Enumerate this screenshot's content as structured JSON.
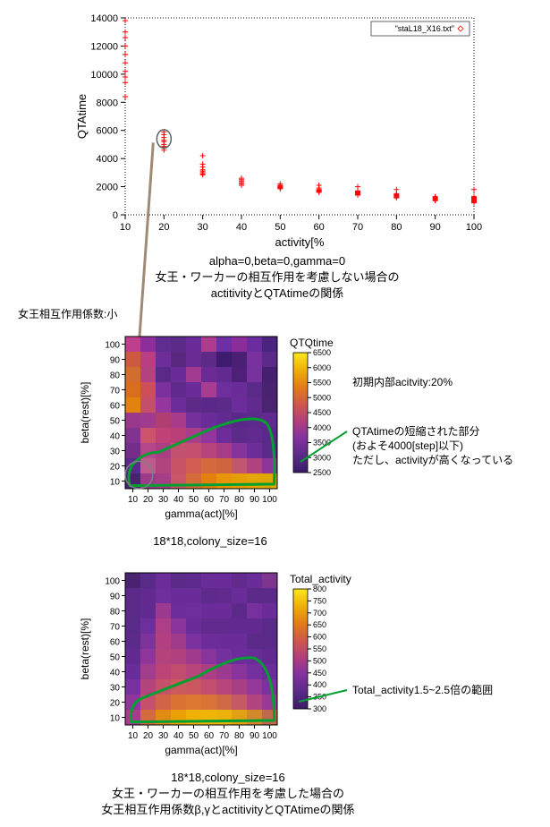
{
  "scatter": {
    "type": "scatter",
    "title_box": "\"staL18_X16.txt\"",
    "xlabel": "activity[%",
    "ylabel": "QTAtime",
    "xlim": [
      10,
      100
    ],
    "ylim": [
      0,
      14000
    ],
    "xticks": [
      10,
      20,
      30,
      40,
      50,
      60,
      70,
      80,
      90,
      100
    ],
    "yticks": [
      0,
      2000,
      4000,
      6000,
      8000,
      10000,
      12000,
      14000
    ],
    "marker_color": "#ff0000",
    "marker_size": 3,
    "bg_color": "#ffffff",
    "axis_color": "#000000",
    "tick_font_size": 11,
    "points": [
      [
        10,
        13800
      ],
      [
        10,
        13000
      ],
      [
        10,
        12600
      ],
      [
        10,
        12000
      ],
      [
        10,
        11400
      ],
      [
        10,
        10800
      ],
      [
        10,
        10200
      ],
      [
        10,
        9800
      ],
      [
        10,
        9400
      ],
      [
        10,
        8400
      ],
      [
        20,
        5900
      ],
      [
        20,
        5700
      ],
      [
        20,
        5500
      ],
      [
        20,
        5300
      ],
      [
        20,
        5200
      ],
      [
        20,
        5000
      ],
      [
        20,
        4800
      ],
      [
        20,
        4600
      ],
      [
        20,
        4850
      ],
      [
        30,
        3600
      ],
      [
        30,
        3400
      ],
      [
        30,
        3200
      ],
      [
        30,
        3100
      ],
      [
        30,
        3000
      ],
      [
        30,
        2900
      ],
      [
        30,
        2850
      ],
      [
        30,
        4200
      ],
      [
        40,
        2600
      ],
      [
        40,
        2500
      ],
      [
        40,
        2400
      ],
      [
        40,
        2300
      ],
      [
        40,
        2200
      ],
      [
        40,
        2100
      ],
      [
        50,
        2200
      ],
      [
        50,
        2100
      ],
      [
        50,
        2050
      ],
      [
        50,
        2000
      ],
      [
        50,
        1950
      ],
      [
        50,
        1900
      ],
      [
        50,
        1850
      ],
      [
        60,
        1900
      ],
      [
        60,
        1800
      ],
      [
        60,
        1750
      ],
      [
        60,
        1700
      ],
      [
        60,
        1650
      ],
      [
        60,
        1600
      ],
      [
        60,
        2100
      ],
      [
        70,
        1700
      ],
      [
        70,
        1650
      ],
      [
        70,
        1600
      ],
      [
        70,
        1550
      ],
      [
        70,
        1500
      ],
      [
        70,
        1450
      ],
      [
        70,
        1400
      ],
      [
        70,
        2000
      ],
      [
        80,
        1500
      ],
      [
        80,
        1450
      ],
      [
        80,
        1400
      ],
      [
        80,
        1350
      ],
      [
        80,
        1300
      ],
      [
        80,
        1250
      ],
      [
        80,
        1200
      ],
      [
        80,
        1800
      ],
      [
        90,
        1300
      ],
      [
        90,
        1250
      ],
      [
        90,
        1200
      ],
      [
        90,
        1150
      ],
      [
        90,
        1100
      ],
      [
        90,
        1050
      ],
      [
        90,
        1000
      ],
      [
        100,
        1300
      ],
      [
        100,
        1250
      ],
      [
        100,
        1200
      ],
      [
        100,
        1150
      ],
      [
        100,
        1100
      ],
      [
        100,
        1050
      ],
      [
        100,
        1000
      ],
      [
        100,
        950
      ],
      [
        100,
        900
      ],
      [
        100,
        850
      ],
      [
        100,
        1800
      ]
    ],
    "circle_box": {
      "x": 20,
      "y": 5400,
      "rx": 5,
      "ry": 650,
      "stroke": "#606060",
      "stroke_width": 1.5
    },
    "sub_caption_1": "alpha=0,beta=0,gamma=0",
    "caption_2": "女王・ワーカーの相互作用を考慮しない場合の",
    "caption_3": "actitivityとQTAtimeの関係"
  },
  "connector": {
    "stroke": "#a08a76",
    "stroke_width": 3
  },
  "left_label": "女王相互作用係数:小",
  "heatmap1": {
    "type": "heatmap",
    "xlabel": "gamma(act)[%]",
    "ylabel": "beta(rest)[%]",
    "colorbar_title": "QTQtime",
    "xlims": [
      10,
      100
    ],
    "ylims": [
      10,
      100
    ],
    "xticks": [
      10,
      20,
      30,
      40,
      50,
      60,
      70,
      80,
      90,
      100
    ],
    "yticks": [
      10,
      20,
      30,
      40,
      50,
      60,
      70,
      80,
      90,
      100
    ],
    "colorbar_ticks": [
      2500,
      3000,
      3500,
      4000,
      4500,
      5000,
      5500,
      6000,
      6500
    ],
    "caption": "18*18,colony_size=16",
    "right_labels": {
      "a": "初期内部acitvity:20%",
      "b": "QTAtimeの短縮された部分",
      "c": "(およそ4000[step]以下)",
      "d": "ただし、activityが高くなっている"
    },
    "region_stroke": "#00a030",
    "region_width": 3,
    "grid": {
      "rows": 10,
      "cols": 10,
      "colors": [
        [
          "#bf3f8f",
          "#8e2e9c",
          "#5f2c90",
          "#5a2a88",
          "#6a2c98",
          "#ad3c8f",
          "#6c2fa5",
          "#8a2d9a",
          "#6b2c9e",
          "#4b2480"
        ],
        [
          "#cd5a40",
          "#b93e83",
          "#6e2e9a",
          "#5a297f",
          "#6a2c94",
          "#5d2a88",
          "#3e1c70",
          "#4a2074",
          "#78319d",
          "#5b2a88"
        ],
        [
          "#d06d2f",
          "#b34280",
          "#5a2a88",
          "#6a2c98",
          "#a23a91",
          "#6a2c94",
          "#622a90",
          "#4e2078",
          "#78329d",
          "#462070"
        ],
        [
          "#d96f1e",
          "#cd4f59",
          "#7a319d",
          "#602a8c",
          "#6a2c98",
          "#a83c90",
          "#6e2e9c",
          "#6a2c98",
          "#5a2a88",
          "#4a2272"
        ],
        [
          "#e28310",
          "#c34f68",
          "#94369e",
          "#6c2d9a",
          "#5e2a88",
          "#5a2888",
          "#5c2a88",
          "#6c2c9c",
          "#602a8e",
          "#4a2470"
        ],
        [
          "#9a388b",
          "#a03a8e",
          "#b03e70",
          "#a83b8a",
          "#74319c",
          "#6a2c98",
          "#622a90",
          "#5a2888",
          "#5c2a88",
          "#622a90"
        ],
        [
          "#82338f",
          "#cb536a",
          "#c04176",
          "#ba3f79",
          "#a83d89",
          "#94349d",
          "#6e2c9a",
          "#5c2a88",
          "#622a8e",
          "#5a288a"
        ],
        [
          "#742e8a",
          "#b4468a",
          "#aa3f83",
          "#c35270",
          "#c3506e",
          "#b6457c",
          "#a63c88",
          "#84349c",
          "#6c2c9a",
          "#5a2a88"
        ],
        [
          "#5a2a88",
          "#bb5c8c",
          "#b0447f",
          "#c95366",
          "#d35d50",
          "#d46a3c",
          "#cf6440",
          "#c15672",
          "#b04280",
          "#8e3698"
        ],
        [
          "#4a2272",
          "#9e3a8c",
          "#a63e87",
          "#c65768",
          "#d36c3a",
          "#e28110",
          "#e8950a",
          "#e69e06",
          "#e4a506",
          "#e0a606"
        ]
      ]
    },
    "colorbar_gradient": [
      "#3a1a66",
      "#5a2a88",
      "#8232a0",
      "#b03e7c",
      "#d0584c",
      "#e27c16",
      "#f0b008",
      "#fce820"
    ]
  },
  "heatmap2": {
    "type": "heatmap",
    "xlabel": "gamma(act)[%]",
    "ylabel": "beta(rest)[%]",
    "colorbar_title": "Total_activity",
    "xlims": [
      10,
      100
    ],
    "ylims": [
      10,
      100
    ],
    "xticks": [
      10,
      20,
      30,
      40,
      50,
      60,
      70,
      80,
      90,
      100
    ],
    "yticks": [
      10,
      20,
      30,
      40,
      50,
      60,
      70,
      80,
      90,
      100
    ],
    "colorbar_ticks": [
      300,
      350,
      400,
      450,
      500,
      550,
      600,
      650,
      700,
      750,
      800
    ],
    "caption1": "18*18,colony_size=16",
    "caption2": "女王・ワーカーの相互作用を考慮した場合の",
    "caption3": "女王相互作用係数β,γとactitivityとQTAtimeの関係",
    "right_label": "Total_activity1.5~2.5倍の範囲",
    "region_stroke": "#00a030",
    "region_width": 3,
    "grid": {
      "rows": 10,
      "cols": 10,
      "colors": [
        [
          "#4a2272",
          "#5a2a88",
          "#6c2c9a",
          "#5a2a88",
          "#5e2a8e",
          "#6a2c98",
          "#6a2c98",
          "#622a8c",
          "#6a2c98",
          "#7e3590"
        ],
        [
          "#5a2a88",
          "#622a90",
          "#6e2e9c",
          "#6a2c98",
          "#6a2c98",
          "#5e2a8c",
          "#622a8e",
          "#6a2c98",
          "#5c2a88",
          "#5c2a88"
        ],
        [
          "#5a2a88",
          "#622a90",
          "#9c3a90",
          "#6c2e9a",
          "#6e2e9c",
          "#6a2c98",
          "#6a2c98",
          "#5c2a88",
          "#78309e",
          "#6a2c98"
        ],
        [
          "#5a2a88",
          "#6e2e9c",
          "#ae3f86",
          "#8a349c",
          "#6a2c98",
          "#622a8c",
          "#622a8e",
          "#622a90",
          "#622a90",
          "#5a2a88"
        ],
        [
          "#5c2a88",
          "#7e339a",
          "#b24080",
          "#a03b8c",
          "#7c329e",
          "#6c2c9a",
          "#6a2c98",
          "#6a2c98",
          "#5c2a88",
          "#5a2a88"
        ],
        [
          "#622a90",
          "#90369a",
          "#b4437c",
          "#b0417e",
          "#a03a8d",
          "#88349c",
          "#74309c",
          "#6c2c9a",
          "#6a2c98",
          "#622a90"
        ],
        [
          "#6a2c98",
          "#a23c8c",
          "#ba4576",
          "#c04c6e",
          "#b8467a",
          "#ac3f84",
          "#9c3a90",
          "#88349c",
          "#74309e",
          "#6a2c98"
        ],
        [
          "#78309e",
          "#b4447c",
          "#c6526a",
          "#cc5a5c",
          "#ca5760",
          "#c24f6e",
          "#b8467a",
          "#a83e86",
          "#94389a",
          "#7c329e"
        ],
        [
          "#90369a",
          "#c4506c",
          "#d2644a",
          "#da7234",
          "#dc7830",
          "#d87438",
          "#d06a46",
          "#c45a66",
          "#b24480",
          "#9a3996"
        ],
        [
          "#a63c8a",
          "#d46a40",
          "#e28a16",
          "#eca008",
          "#f0b006",
          "#eeb406",
          "#eab20a",
          "#e2a014",
          "#d4882c",
          "#c06a4c"
        ]
      ]
    },
    "colorbar_gradient": [
      "#3a1a66",
      "#5a2a88",
      "#8232a0",
      "#b03e7c",
      "#d0584c",
      "#e27c16",
      "#f0b008",
      "#fce820"
    ]
  }
}
